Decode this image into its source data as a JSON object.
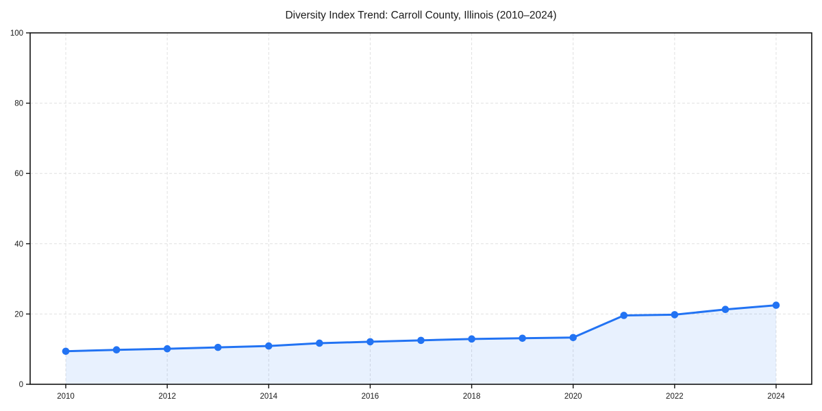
{
  "page": {
    "title": "Diversity Index Trend: Carroll County, Illinois (2010–2024)"
  },
  "chart_data": {
    "type": "line",
    "title": "Diversity Index Trend: Carroll County, Illinois (2010–2024)",
    "x": [
      2010,
      2011,
      2012,
      2013,
      2014,
      2015,
      2016,
      2017,
      2018,
      2019,
      2020,
      2021,
      2022,
      2023,
      2024
    ],
    "series": [
      {
        "name": "Diversity Index",
        "values": [
          9.4,
          9.8,
          10.1,
          10.5,
          10.9,
          11.7,
          12.1,
          12.5,
          12.9,
          13.1,
          13.3,
          19.6,
          19.8,
          21.3,
          22.5
        ]
      }
    ],
    "xlabel": "",
    "ylabel": "",
    "ylim": [
      0,
      100
    ],
    "xticks": [
      2010,
      2012,
      2014,
      2016,
      2018,
      2020,
      2022,
      2024
    ],
    "yticks": [
      0,
      20,
      40,
      60,
      80,
      100
    ],
    "grid": true,
    "grid_style": "dashed",
    "legend_position": "none",
    "line_color": "#2273f3",
    "marker_color": "#2273f3",
    "fill_color": "rgba(34, 115, 243, 0.10)",
    "grid_color": "#e0e0e0",
    "spine_color": "#111111",
    "text_color": "#1a1a1a",
    "marker": "circle",
    "area_fill": true
  }
}
